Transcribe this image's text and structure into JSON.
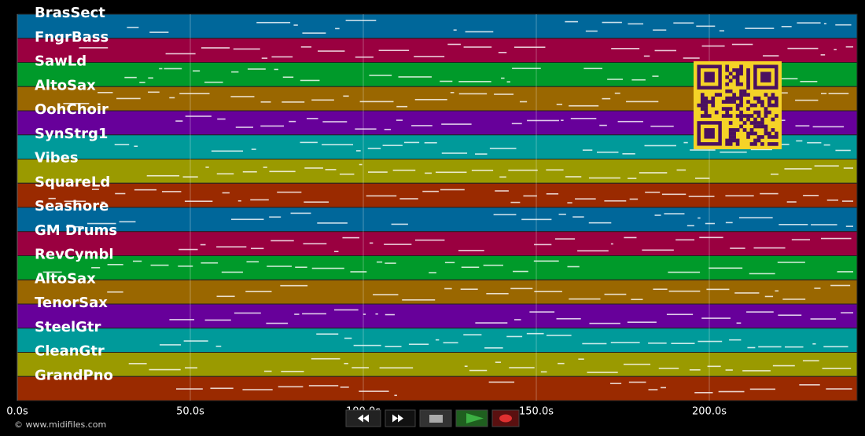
{
  "tracks": [
    {
      "name": "BrasSect",
      "color": "#00679a"
    },
    {
      "name": "FngrBass",
      "color": "#9a0040"
    },
    {
      "name": "SawLd",
      "color": "#009a2a"
    },
    {
      "name": "AltoSax",
      "color": "#9a6700"
    },
    {
      "name": "OohChoir",
      "color": "#67009a"
    },
    {
      "name": "SynStrg1",
      "color": "#009a9a"
    },
    {
      "name": "Vibes",
      "color": "#9a9a00"
    },
    {
      "name": "SquareLd",
      "color": "#9a2a00"
    },
    {
      "name": "Seashore",
      "color": "#00679a"
    },
    {
      "name": "GM Drums",
      "color": "#9a0040"
    },
    {
      "name": "RevCymbl",
      "color": "#009a2a"
    },
    {
      "name": "AltoSax",
      "color": "#9a6700"
    },
    {
      "name": "TenorSax",
      "color": "#67009a"
    },
    {
      "name": "SteelGtr",
      "color": "#009a9a"
    },
    {
      "name": "CleanGtr",
      "color": "#9a9a00"
    },
    {
      "name": "GrandPno",
      "color": "#9a2a00"
    }
  ],
  "timeline": {
    "ticks": [
      "0.0s",
      "50.0s",
      "100.0s",
      "150.0s",
      "200.0s"
    ]
  },
  "footer": "© www.midifiles.com"
}
